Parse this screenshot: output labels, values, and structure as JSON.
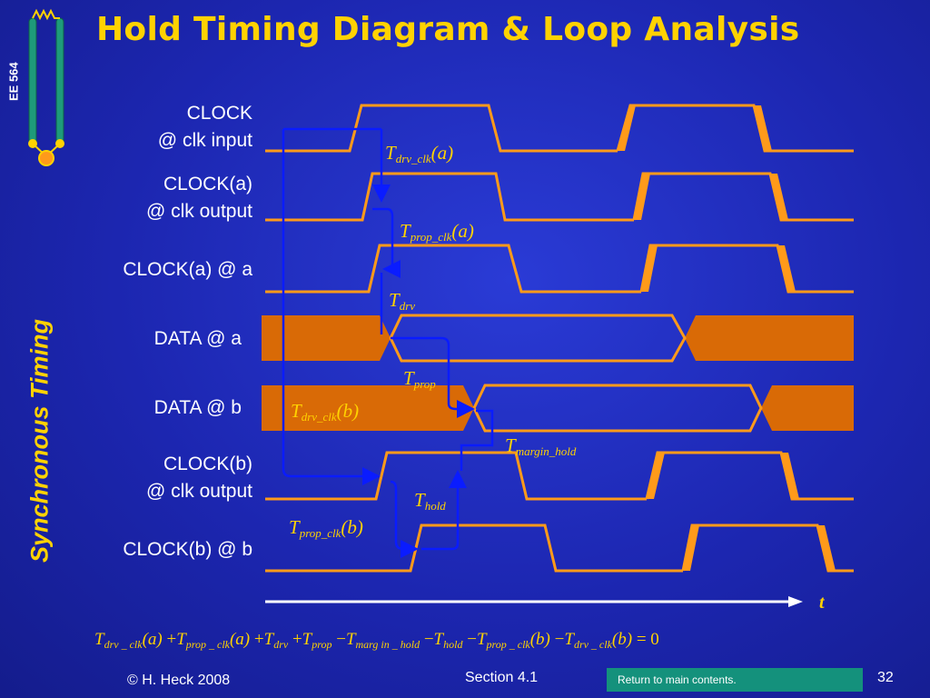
{
  "title": "Hold Timing Diagram & Loop Analysis",
  "course": "EE 564",
  "section_side_label": "Synchronous Timing",
  "signals": [
    {
      "line1": "CLOCK",
      "line2": "@ clk input"
    },
    {
      "line1": "CLOCK(a)",
      "line2": "@ clk output"
    },
    {
      "line1": "CLOCK(a) @ a",
      "line2": ""
    },
    {
      "line1": "DATA @ a",
      "line2": ""
    },
    {
      "line1": "DATA @ b",
      "line2": ""
    },
    {
      "line1": "CLOCK(b)",
      "line2": "@ clk output"
    },
    {
      "line1": "CLOCK(b) @ b",
      "line2": ""
    }
  ],
  "annotations": {
    "t_drv_clk_a": {
      "main": "T",
      "sub": "drv_clk",
      "arg": "(a)"
    },
    "t_prop_clk_a": {
      "main": "T",
      "sub": "prop_clk",
      "arg": "(a)"
    },
    "t_drv": {
      "main": "T",
      "sub": "drv",
      "arg": ""
    },
    "t_prop": {
      "main": "T",
      "sub": "prop",
      "arg": ""
    },
    "t_drv_clk_b": {
      "main": "T",
      "sub": "drv_clk",
      "arg": "(b)"
    },
    "t_margin_hold": {
      "main": "T",
      "sub": "margin_hold",
      "arg": ""
    },
    "t_hold": {
      "main": "T",
      "sub": "hold",
      "arg": ""
    },
    "t_prop_clk_b": {
      "main": "T",
      "sub": "prop_clk",
      "arg": "(b)"
    }
  },
  "time_axis_label": "t",
  "equation": {
    "terms": [
      {
        "op": "",
        "sub": "drv _ clk",
        "arg": "(a)"
      },
      {
        "op": "+",
        "sub": "prop _ clk",
        "arg": "(a)"
      },
      {
        "op": "+",
        "sub": "drv",
        "arg": ""
      },
      {
        "op": "+",
        "sub": "prop",
        "arg": ""
      },
      {
        "op": "−",
        "sub": "marg in _ hold",
        "arg": ""
      },
      {
        "op": "−",
        "sub": "hold",
        "arg": ""
      },
      {
        "op": "−",
        "sub": "prop _ clk",
        "arg": "(b)"
      },
      {
        "op": "−",
        "sub": "drv _ clk",
        "arg": "(b)"
      }
    ],
    "rhs": "= 0"
  },
  "footer": {
    "copyright": "© H. Heck 2008",
    "section": "Section 4.1",
    "return_link": "Return to main contents.",
    "page_number": "32"
  },
  "colors": {
    "accent": "#ffd200",
    "waveform": "#ff9a1a",
    "data_fill": "#d96a06",
    "arrow": "#0a1cff",
    "background": "#1c26b0",
    "return_link_bg": "#14917c"
  }
}
